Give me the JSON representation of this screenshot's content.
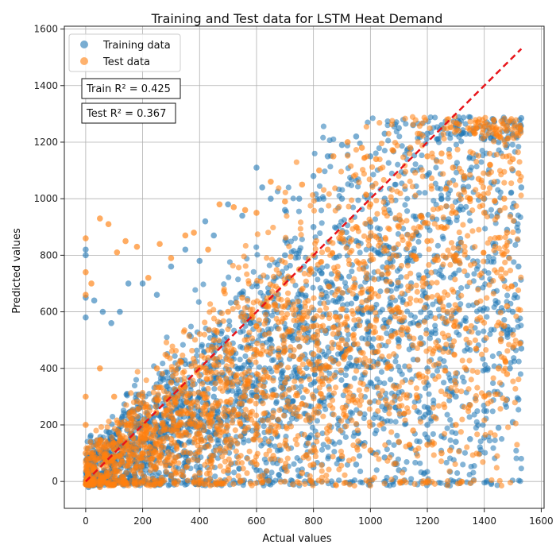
{
  "chart_data": {
    "type": "scatter",
    "title": "Training and Test data for LSTM Heat Demand",
    "xlabel": "Actual values",
    "ylabel": "Predicted values",
    "xlim": [
      -75,
      1610
    ],
    "ylim": [
      -95,
      1610
    ],
    "xticks": [
      0,
      200,
      400,
      600,
      800,
      1000,
      1200,
      1400,
      1600
    ],
    "yticks": [
      0,
      200,
      400,
      600,
      800,
      1000,
      1200,
      1400,
      1600
    ],
    "tick_labels_x": [
      "0",
      "200",
      "400",
      "600",
      "800",
      "1000",
      "1200",
      "1400",
      "1600"
    ],
    "tick_labels_y": [
      "0",
      "200",
      "400",
      "600",
      "800",
      "1000",
      "1200",
      "1400",
      "1600"
    ],
    "grid": true,
    "legend_position": "top-left",
    "series": [
      {
        "name": "Training data",
        "color": "#1f77b4",
        "values": [
          [
            0,
            820
          ],
          [
            0,
            800
          ],
          [
            0,
            650
          ],
          [
            0,
            580
          ],
          [
            30,
            640
          ],
          [
            60,
            600
          ],
          [
            90,
            560
          ],
          [
            120,
            600
          ],
          [
            150,
            700
          ],
          [
            200,
            700
          ],
          [
            250,
            660
          ],
          [
            300,
            760
          ],
          [
            350,
            820
          ],
          [
            400,
            780
          ],
          [
            420,
            920
          ],
          [
            450,
            870
          ],
          [
            500,
            980
          ],
          [
            550,
            940
          ],
          [
            600,
            1110
          ],
          [
            620,
            1040
          ],
          [
            650,
            1000
          ],
          [
            700,
            960
          ],
          [
            750,
            1000
          ],
          [
            800,
            1080
          ],
          [
            850,
            1150
          ],
          [
            900,
            1190
          ],
          [
            950,
            1220
          ],
          [
            1000,
            1150
          ],
          [
            1050,
            1230
          ],
          [
            1100,
            1250
          ],
          [
            1150,
            1260
          ],
          [
            1200,
            1230
          ],
          [
            1250,
            1260
          ],
          [
            1300,
            1260
          ],
          [
            1350,
            1230
          ],
          [
            1400,
            1210
          ],
          [
            1450,
            1200
          ],
          [
            1480,
            1190
          ],
          [
            1530,
            1285
          ],
          [
            1500,
            1100
          ],
          [
            1530,
            1040
          ],
          [
            1500,
            970
          ],
          [
            1480,
            890
          ],
          [
            1520,
            760
          ],
          [
            1470,
            710
          ],
          [
            1500,
            600
          ],
          [
            1480,
            520
          ],
          [
            1530,
            470
          ],
          [
            1490,
            400
          ],
          [
            1520,
            290
          ],
          [
            1480,
            290
          ],
          [
            1500,
            210
          ],
          [
            1450,
            190
          ],
          [
            1400,
            155
          ],
          [
            1350,
            150
          ],
          [
            1300,
            140
          ],
          [
            1250,
            160
          ],
          [
            1200,
            155
          ],
          [
            1100,
            40
          ],
          [
            1050,
            85
          ],
          [
            950,
            60
          ],
          [
            900,
            80
          ],
          [
            800,
            50
          ],
          [
            700,
            40
          ],
          [
            600,
            40
          ],
          [
            500,
            30
          ],
          [
            400,
            20
          ],
          [
            300,
            10
          ],
          [
            200,
            0
          ],
          [
            150,
            -5
          ],
          [
            100,
            -10
          ],
          [
            50,
            -15
          ],
          [
            10,
            -20
          ],
          [
            600,
            700
          ],
          [
            700,
            800
          ],
          [
            800,
            900
          ],
          [
            900,
            1000
          ],
          [
            1000,
            900
          ],
          [
            1100,
            800
          ],
          [
            1200,
            700
          ],
          [
            1300,
            600
          ],
          [
            1400,
            500
          ],
          [
            1000,
            600
          ],
          [
            1100,
            500
          ],
          [
            1200,
            400
          ],
          [
            1300,
            300
          ],
          [
            1400,
            250
          ],
          [
            800,
            300
          ],
          [
            700,
            250
          ],
          [
            600,
            300
          ],
          [
            500,
            350
          ],
          [
            400,
            300
          ],
          [
            300,
            250
          ],
          [
            200,
            200
          ],
          [
            900,
            450
          ],
          [
            1000,
            350
          ],
          [
            1100,
            250
          ],
          [
            1200,
            200
          ],
          [
            1300,
            350
          ],
          [
            1450,
            600
          ],
          [
            1400,
            1000
          ],
          [
            1350,
            1100
          ],
          [
            1250,
            1000
          ],
          [
            1150,
            1100
          ],
          [
            1050,
            1000
          ],
          [
            950,
            850
          ],
          [
            850,
            700
          ],
          [
            750,
            600
          ],
          [
            650,
            500
          ],
          [
            550,
            400
          ],
          [
            450,
            300
          ]
        ]
      },
      {
        "name": "Test data",
        "color": "#ff7f0e",
        "values": [
          [
            0,
            860
          ],
          [
            0,
            740
          ],
          [
            0,
            660
          ],
          [
            20,
            700
          ],
          [
            50,
            930
          ],
          [
            80,
            910
          ],
          [
            110,
            810
          ],
          [
            140,
            850
          ],
          [
            180,
            830
          ],
          [
            220,
            720
          ],
          [
            260,
            840
          ],
          [
            300,
            790
          ],
          [
            350,
            870
          ],
          [
            380,
            880
          ],
          [
            430,
            820
          ],
          [
            470,
            980
          ],
          [
            520,
            970
          ],
          [
            560,
            960
          ],
          [
            600,
            950
          ],
          [
            650,
            1060
          ],
          [
            700,
            990
          ],
          [
            760,
            1050
          ],
          [
            820,
            1100
          ],
          [
            870,
            1150
          ],
          [
            920,
            1200
          ],
          [
            970,
            1180
          ],
          [
            1020,
            1140
          ],
          [
            1080,
            1170
          ],
          [
            1140,
            1180
          ],
          [
            1200,
            1150
          ],
          [
            1250,
            1160
          ],
          [
            1290,
            1110
          ],
          [
            1330,
            1080
          ],
          [
            1380,
            1070
          ],
          [
            1420,
            1120
          ],
          [
            1480,
            1255
          ],
          [
            1500,
            1140
          ],
          [
            1520,
            1090
          ],
          [
            1470,
            1000
          ],
          [
            1480,
            880
          ],
          [
            1460,
            750
          ],
          [
            1480,
            620
          ],
          [
            1470,
            550
          ],
          [
            1450,
            400
          ],
          [
            1480,
            380
          ],
          [
            1400,
            300
          ],
          [
            1350,
            270
          ],
          [
            1300,
            200
          ],
          [
            1280,
            110
          ],
          [
            1250,
            100
          ],
          [
            1200,
            130
          ],
          [
            1150,
            180
          ],
          [
            1100,
            140
          ],
          [
            1000,
            110
          ],
          [
            900,
            90
          ],
          [
            800,
            60
          ],
          [
            760,
            30
          ],
          [
            700,
            50
          ],
          [
            600,
            60
          ],
          [
            500,
            40
          ],
          [
            400,
            30
          ],
          [
            300,
            20
          ],
          [
            200,
            0
          ],
          [
            100,
            -10
          ],
          [
            50,
            -20
          ],
          [
            0,
            -10
          ],
          [
            0,
            100
          ],
          [
            0,
            200
          ],
          [
            0,
            300
          ],
          [
            50,
            400
          ],
          [
            100,
            300
          ],
          [
            150,
            200
          ],
          [
            200,
            300
          ],
          [
            250,
            400
          ],
          [
            300,
            350
          ],
          [
            350,
            250
          ],
          [
            400,
            400
          ],
          [
            450,
            500
          ],
          [
            500,
            600
          ],
          [
            550,
            650
          ],
          [
            600,
            550
          ],
          [
            650,
            650
          ],
          [
            700,
            700
          ],
          [
            750,
            750
          ],
          [
            800,
            800
          ],
          [
            850,
            820
          ],
          [
            900,
            880
          ],
          [
            950,
            900
          ],
          [
            1000,
            980
          ],
          [
            1050,
            950
          ],
          [
            1100,
            900
          ],
          [
            1150,
            870
          ],
          [
            1200,
            850
          ],
          [
            1250,
            900
          ],
          [
            1300,
            950
          ],
          [
            1350,
            1000
          ],
          [
            1400,
            950
          ],
          [
            1300,
            800
          ],
          [
            1200,
            650
          ],
          [
            1100,
            600
          ],
          [
            1000,
            550
          ],
          [
            900,
            500
          ],
          [
            800,
            450
          ],
          [
            700,
            350
          ],
          [
            600,
            300
          ],
          [
            500,
            250
          ],
          [
            400,
            200
          ],
          [
            300,
            150
          ],
          [
            200,
            100
          ],
          [
            100,
            50
          ]
        ]
      }
    ],
    "reference_line": {
      "from": [
        0,
        0
      ],
      "to": [
        1530,
        1530
      ],
      "color": "#e8141a",
      "style": "dashed"
    },
    "annotations": [
      "Train R² = 0.425",
      "Test R² = 0.367"
    ]
  }
}
